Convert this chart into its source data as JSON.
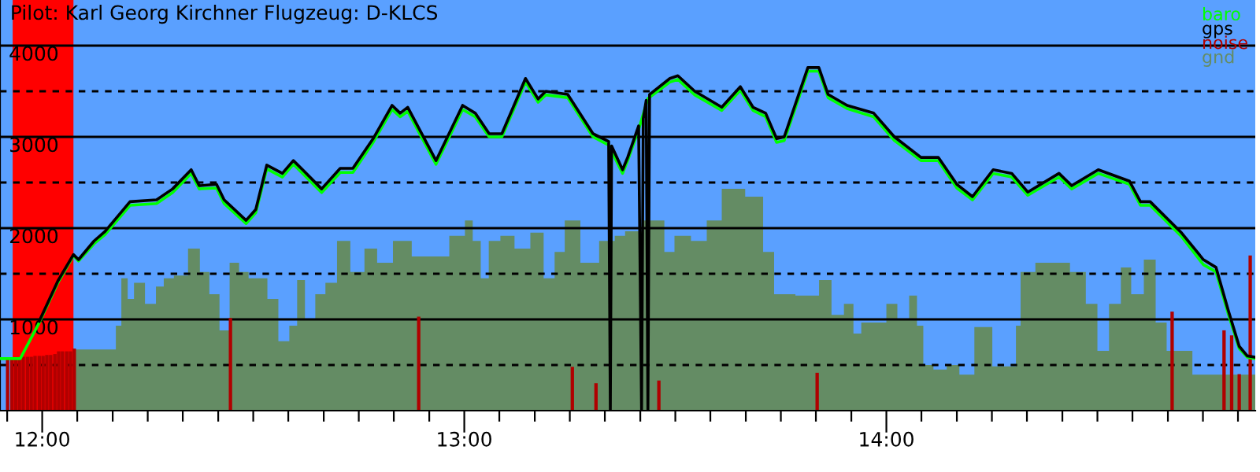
{
  "chart_data": {
    "type": "line",
    "title": "Pilot: Karl Georg Kirchner Flugzeug: D-KLCS",
    "xlim": [
      11.9,
      14.874
    ],
    "ylim": [
      0,
      4500
    ],
    "xticks": [
      {
        "value": 11.917,
        "label": null
      },
      {
        "value": 12,
        "label": "12:00"
      },
      {
        "value": 12.083,
        "label": null
      },
      {
        "value": 12.167,
        "label": null
      },
      {
        "value": 12.25,
        "label": null
      },
      {
        "value": 12.333,
        "label": null
      },
      {
        "value": 12.417,
        "label": null
      },
      {
        "value": 12.5,
        "label": null
      },
      {
        "value": 12.583,
        "label": null
      },
      {
        "value": 12.667,
        "label": null
      },
      {
        "value": 12.75,
        "label": null
      },
      {
        "value": 12.833,
        "label": null
      },
      {
        "value": 12.917,
        "label": null
      },
      {
        "value": 13,
        "label": "13:00"
      },
      {
        "value": 13.083,
        "label": null
      },
      {
        "value": 13.167,
        "label": null
      },
      {
        "value": 13.25,
        "label": null
      },
      {
        "value": 13.333,
        "label": null
      },
      {
        "value": 13.417,
        "label": null
      },
      {
        "value": 13.5,
        "label": null
      },
      {
        "value": 13.583,
        "label": null
      },
      {
        "value": 13.667,
        "label": null
      },
      {
        "value": 13.75,
        "label": null
      },
      {
        "value": 13.833,
        "label": null
      },
      {
        "value": 13.917,
        "label": null
      },
      {
        "value": 14,
        "label": "14:00"
      },
      {
        "value": 14.083,
        "label": null
      },
      {
        "value": 14.167,
        "label": null
      },
      {
        "value": 14.25,
        "label": null
      },
      {
        "value": 14.333,
        "label": null
      },
      {
        "value": 14.417,
        "label": null
      },
      {
        "value": 14.5,
        "label": null
      },
      {
        "value": 14.583,
        "label": null
      },
      {
        "value": 14.667,
        "label": null
      },
      {
        "value": 14.75,
        "label": null
      },
      {
        "value": 14.833,
        "label": null
      }
    ],
    "yticks": [
      {
        "value": 500,
        "label": null
      },
      1000,
      {
        "value": 1500,
        "label": null
      },
      2000,
      {
        "value": 2500,
        "label": null
      },
      3000,
      {
        "value": 3500,
        "label": null
      },
      4000
    ],
    "grid": "y",
    "legend": "top right",
    "bands": [
      {
        "axis": "x",
        "from": 11.93,
        "to": 12.074,
        "color": "#ff0000"
      }
    ],
    "series": [
      {
        "name": "baro",
        "color": "#00ff00",
        "x": [
          11.9,
          11.948,
          11.993,
          12.037,
          12.074,
          12.086,
          12.123,
          12.149,
          12.208,
          12.271,
          12.309,
          12.353,
          12.372,
          12.413,
          12.431,
          12.483,
          12.506,
          12.532,
          12.569,
          12.595,
          12.617,
          12.662,
          12.706,
          12.736,
          12.784,
          12.829,
          12.848,
          12.866,
          12.933,
          12.996,
          13.026,
          13.059,
          13.089,
          13.145,
          13.175,
          13.193,
          13.245,
          13.305,
          13.342,
          13.375,
          13.387,
          13.413,
          13.435,
          13.487,
          13.506,
          13.546,
          13.61,
          13.654,
          13.684,
          13.714,
          13.74,
          13.758,
          13.814,
          13.84,
          13.862,
          13.907,
          13.97,
          14.019,
          14.082,
          14.123,
          14.167,
          14.204,
          14.253,
          14.297,
          14.335,
          14.409,
          14.439,
          14.502,
          14.576,
          14.602,
          14.625,
          14.699,
          14.751,
          14.781,
          14.81,
          14.836,
          14.855,
          14.874
        ],
        "values": [
          570,
          570,
          965,
          1400,
          1700,
          1640,
          1830,
          1930,
          2250,
          2270,
          2390,
          2600,
          2430,
          2440,
          2270,
          2050,
          2170,
          2650,
          2560,
          2700,
          2600,
          2390,
          2610,
          2610,
          2940,
          3300,
          3220,
          3280,
          2700,
          3300,
          3220,
          3000,
          3000,
          3600,
          3380,
          3460,
          3430,
          3000,
          2910,
          2600,
          2740,
          3080,
          3420,
          3600,
          3630,
          3460,
          3290,
          3510,
          3290,
          3220,
          2940,
          2960,
          3720,
          3720,
          3430,
          3310,
          3220,
          2960,
          2740,
          2740,
          2440,
          2310,
          2600,
          2560,
          2360,
          2560,
          2430,
          2600,
          2480,
          2250,
          2250,
          1910,
          1600,
          1520,
          1060,
          680,
          585,
          570
        ]
      },
      {
        "name": "gps",
        "color": "#000000",
        "x": [
          11.993,
          12.037,
          12.074,
          12.086,
          12.123,
          12.149,
          12.208,
          12.271,
          12.309,
          12.353,
          12.372,
          12.413,
          12.431,
          12.483,
          12.506,
          12.532,
          12.569,
          12.595,
          12.617,
          12.662,
          12.706,
          12.736,
          12.784,
          12.829,
          12.848,
          12.866,
          12.933,
          12.996,
          13.026,
          13.059,
          13.089,
          13.145,
          13.175,
          13.193,
          13.245,
          13.305,
          13.342,
          13.346,
          13.349,
          13.375,
          13.387,
          13.413,
          13.42,
          13.424,
          13.431,
          13.435,
          13.439,
          13.487,
          13.506,
          13.546,
          13.61,
          13.654,
          13.684,
          13.714,
          13.74,
          13.758,
          13.814,
          13.84,
          13.862,
          13.907,
          13.97,
          14.019,
          14.082,
          14.123,
          14.167,
          14.204,
          14.253,
          14.297,
          14.335,
          14.409,
          14.439,
          14.502,
          14.576,
          14.602,
          14.625,
          14.699,
          14.751,
          14.781,
          14.81,
          14.836,
          14.855,
          14.874
        ],
        "values": [
          980,
          1420,
          1710,
          1655,
          1860,
          1965,
          2290,
          2310,
          2430,
          2640,
          2465,
          2480,
          2310,
          2085,
          2205,
          2690,
          2600,
          2740,
          2640,
          2430,
          2655,
          2655,
          2980,
          3345,
          3260,
          3325,
          2740,
          3345,
          3260,
          3035,
          3035,
          3640,
          3415,
          3500,
          3465,
          3035,
          2950,
          0,
          2900,
          2640,
          2775,
          3120,
          0,
          3200,
          3400,
          0,
          3465,
          3640,
          3670,
          3500,
          3325,
          3550,
          3325,
          3260,
          2980,
          3000,
          3760,
          3760,
          3465,
          3345,
          3260,
          3000,
          2775,
          2775,
          2480,
          2345,
          2640,
          2600,
          2395,
          2600,
          2465,
          2640,
          2515,
          2290,
          2290,
          1950,
          1655,
          1570,
          1100,
          705,
          600,
          585
        ]
      },
      {
        "name": "noise",
        "type": "bar",
        "color": "#b00000",
        "x": [
          11.918,
          11.928,
          11.937,
          11.946,
          11.955,
          11.965,
          11.974,
          11.983,
          11.993,
          12.002,
          12.011,
          12.02,
          12.03,
          12.039,
          12.048,
          12.058,
          12.067,
          12.076,
          12.446,
          12.892,
          13.256,
          13.312,
          13.349,
          13.461,
          13.836,
          14.677,
          14.8,
          14.818,
          14.836,
          14.862
        ],
        "values": [
          585,
          585,
          585,
          585,
          590,
          590,
          590,
          600,
          600,
          600,
          610,
          610,
          620,
          650,
          650,
          650,
          650,
          680,
          1015,
          1030,
          480,
          300,
          null,
          330,
          415,
          1085,
          880,
          825,
          400,
          1700
        ]
      },
      {
        "name": "gnd",
        "type": "area",
        "color": "#648c64",
        "x": [
          12.078,
          12.097,
          12.171,
          12.178,
          12.197,
          12.208,
          12.227,
          12.26,
          12.279,
          12.297,
          12.327,
          12.364,
          12.383,
          12.409,
          12.431,
          12.457,
          12.476,
          12.502,
          12.524,
          12.543,
          12.576,
          12.595,
          12.613,
          12.632,
          12.662,
          12.68,
          12.717,
          12.743,
          12.784,
          12.803,
          12.859,
          12.892,
          12.933,
          12.996,
          13.007,
          13.033,
          13.045,
          13.071,
          13.1,
          13.138,
          13.175,
          13.201,
          13.227,
          13.249,
          13.301,
          13.338,
          13.375,
          13.387,
          13.461,
          13.487,
          13.509,
          13.565,
          13.584,
          13.636,
          13.695,
          13.721,
          13.747,
          13.822,
          13.859,
          13.881,
          13.918,
          13.926,
          13.955,
          13.993,
          14.007,
          14.045,
          14.063,
          14.082,
          14.093,
          14.13,
          14.156,
          14.19,
          14.227,
          14.242,
          14.26,
          14.305,
          14.309,
          14.327,
          14.379,
          14.416,
          14.454,
          14.491,
          14.509,
          14.546,
          14.565,
          14.595,
          14.625,
          14.651,
          14.677,
          14.714,
          14.736,
          14.874
        ],
        "values": [
          670,
          670,
          670,
          930,
          1450,
          1225,
          1400,
          1170,
          1360,
          1450,
          1480,
          1775,
          1520,
          1275,
          880,
          1620,
          1520,
          1450,
          1450,
          1225,
          760,
          930,
          1430,
          1000,
          1275,
          1400,
          1860,
          1520,
          1775,
          1620,
          1860,
          1690,
          1690,
          1915,
          2085,
          1860,
          1450,
          1860,
          1915,
          1775,
          1950,
          1450,
          1740,
          2085,
          1620,
          1860,
          1915,
          1965,
          2085,
          1740,
          1915,
          1860,
          2085,
          2430,
          2345,
          1740,
          1275,
          1260,
          1430,
          1050,
          1170,
          845,
          965,
          965,
          1170,
          1000,
          1260,
          930,
          500,
          450,
          500,
          395,
          915,
          915,
          485,
          485,
          930,
          1520,
          1620,
          1620,
          1520,
          1170,
          655,
          1170,
          1570,
          1275,
          1655,
          965,
          655,
          655,
          395,
          395
        ]
      }
    ]
  }
}
